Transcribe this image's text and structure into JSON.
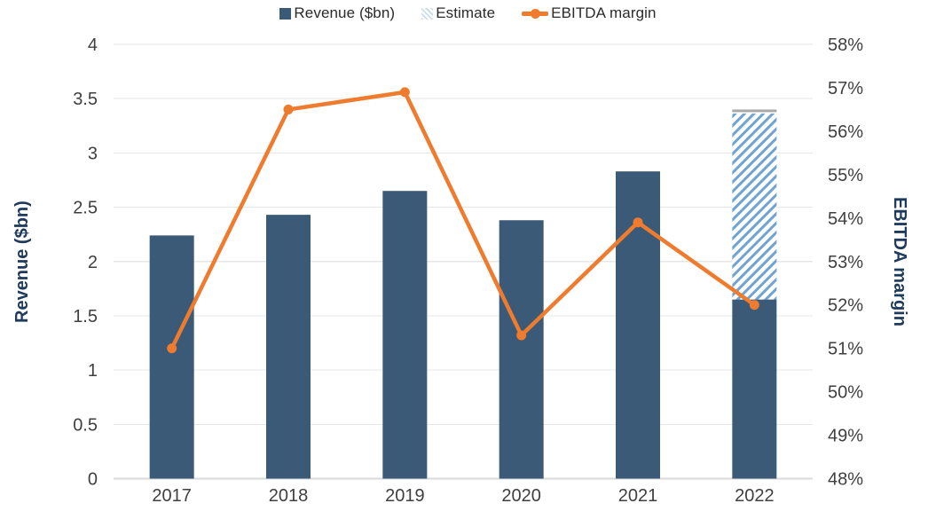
{
  "chart_data": {
    "type": "bar+line",
    "title": "",
    "categories": [
      "2017",
      "2018",
      "2019",
      "2020",
      "2021",
      "2022"
    ],
    "series": [
      {
        "name": "Revenue ($bn)",
        "type": "bar",
        "axis": "left",
        "values": [
          2.24,
          2.43,
          2.65,
          2.38,
          2.83,
          1.65
        ]
      },
      {
        "name": "Estimate",
        "type": "bar",
        "axis": "left",
        "style": "hatched",
        "stacked_on": "Revenue ($bn)",
        "values": [
          null,
          null,
          null,
          null,
          null,
          1.75
        ]
      },
      {
        "name": "EBITDA margin",
        "type": "line",
        "axis": "right",
        "values": [
          51.0,
          56.5,
          56.9,
          51.3,
          53.9,
          52.0
        ]
      }
    ],
    "left_axis": {
      "label": "Revenue ($bn)",
      "min": 0,
      "max": 4,
      "tick_labels": [
        "4",
        "3.5",
        "3",
        "2.5",
        "2",
        "1.5",
        "1",
        "0.5",
        "0"
      ]
    },
    "right_axis": {
      "label": "EBITDA margin",
      "min": 48,
      "max": 58,
      "tick_labels": [
        "58%",
        "57%",
        "56%",
        "55%",
        "54%",
        "53%",
        "52%",
        "51%",
        "50%",
        "49%",
        "48%"
      ]
    },
    "grid": true,
    "legend_position": "top",
    "colors": {
      "bar": "#3a5a77",
      "estimate": "#6fa3d4",
      "estimate_cap": "#a9a9a9",
      "line": "#ee7b2e",
      "grid": "#e7e7e7",
      "axis_line": "#d9d9d9",
      "tick_text": "#3f3f3f",
      "axis_title": "#1e3a5c"
    }
  }
}
